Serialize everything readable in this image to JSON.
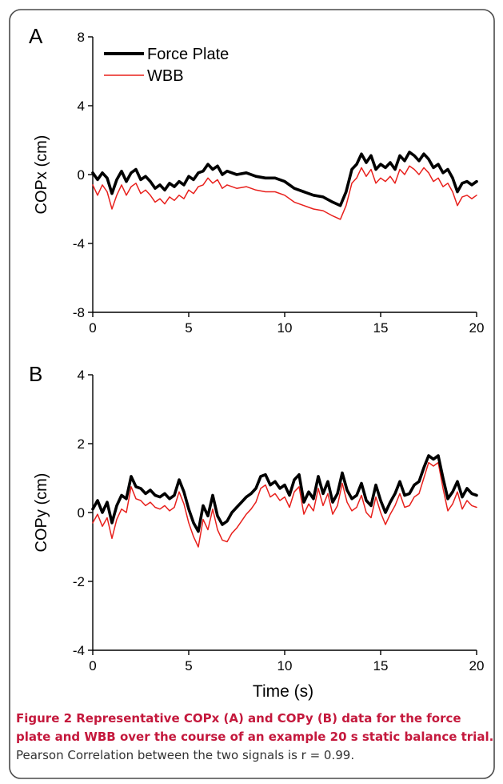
{
  "chart_data": [
    {
      "type": "line",
      "panel_label": "A",
      "ylabel": "COPx  (cm)",
      "xlabel": "",
      "xlim": [
        0,
        20
      ],
      "ylim": [
        -8,
        8
      ],
      "xticks": [
        0,
        5,
        10,
        15,
        20
      ],
      "yticks": [
        8,
        4,
        0,
        -4,
        -8
      ],
      "legend": "top-left",
      "grid": false,
      "series": [
        {
          "name": "Force Plate",
          "color": "#000000",
          "x": [
            0,
            0.25,
            0.5,
            0.75,
            1,
            1.25,
            1.5,
            1.75,
            2,
            2.25,
            2.5,
            2.75,
            3,
            3.25,
            3.5,
            3.75,
            4,
            4.25,
            4.5,
            4.75,
            5,
            5.25,
            5.5,
            5.75,
            6,
            6.25,
            6.5,
            6.75,
            7,
            7.5,
            8,
            8.5,
            9,
            9.5,
            10,
            10.5,
            11,
            11.5,
            12,
            12.5,
            12.9,
            13.2,
            13.5,
            13.75,
            14,
            14.25,
            14.5,
            14.75,
            15,
            15.25,
            15.5,
            15.75,
            16,
            16.25,
            16.5,
            16.75,
            17,
            17.25,
            17.5,
            17.75,
            18,
            18.25,
            18.5,
            18.75,
            19,
            19.25,
            19.5,
            19.75,
            20
          ],
          "y": [
            0.1,
            -0.3,
            0.1,
            -0.2,
            -1.1,
            -0.3,
            0.2,
            -0.4,
            0.1,
            0.3,
            -0.3,
            -0.1,
            -0.4,
            -0.8,
            -0.6,
            -0.9,
            -0.5,
            -0.7,
            -0.4,
            -0.6,
            -0.1,
            -0.3,
            0.1,
            0.2,
            0.6,
            0.3,
            0.5,
            0.0,
            0.2,
            0.0,
            0.1,
            -0.1,
            -0.2,
            -0.2,
            -0.4,
            -0.8,
            -1.0,
            -1.2,
            -1.3,
            -1.6,
            -1.8,
            -1.0,
            0.3,
            0.6,
            1.2,
            0.7,
            1.1,
            0.3,
            0.6,
            0.4,
            0.7,
            0.3,
            1.1,
            0.8,
            1.3,
            1.1,
            0.8,
            1.2,
            0.9,
            0.4,
            0.6,
            0.1,
            0.3,
            -0.2,
            -1.0,
            -0.5,
            -0.4,
            -0.6,
            -0.4
          ]
        },
        {
          "name": "WBB",
          "color": "#e8201c",
          "x": [
            0,
            0.25,
            0.5,
            0.75,
            1,
            1.25,
            1.5,
            1.75,
            2,
            2.25,
            2.5,
            2.75,
            3,
            3.25,
            3.5,
            3.75,
            4,
            4.25,
            4.5,
            4.75,
            5,
            5.25,
            5.5,
            5.75,
            6,
            6.25,
            6.5,
            6.75,
            7,
            7.5,
            8,
            8.5,
            9,
            9.5,
            10,
            10.5,
            11,
            11.5,
            12,
            12.5,
            12.9,
            13.2,
            13.5,
            13.75,
            14,
            14.25,
            14.5,
            14.75,
            15,
            15.25,
            15.5,
            15.75,
            16,
            16.25,
            16.5,
            16.75,
            17,
            17.25,
            17.5,
            17.75,
            18,
            18.25,
            18.5,
            18.75,
            19,
            19.25,
            19.5,
            19.75,
            20
          ],
          "y": [
            -0.6,
            -1.2,
            -0.6,
            -1.0,
            -2.0,
            -1.2,
            -0.6,
            -1.2,
            -0.7,
            -0.5,
            -1.1,
            -0.9,
            -1.2,
            -1.6,
            -1.4,
            -1.7,
            -1.3,
            -1.5,
            -1.2,
            -1.4,
            -0.9,
            -1.1,
            -0.7,
            -0.6,
            -0.2,
            -0.5,
            -0.3,
            -0.8,
            -0.6,
            -0.8,
            -0.7,
            -0.9,
            -1.0,
            -1.0,
            -1.2,
            -1.6,
            -1.8,
            -2.0,
            -2.1,
            -2.4,
            -2.6,
            -1.8,
            -0.5,
            -0.2,
            0.4,
            -0.1,
            0.3,
            -0.5,
            -0.2,
            -0.4,
            -0.1,
            -0.5,
            0.3,
            0.0,
            0.5,
            0.3,
            0.0,
            0.4,
            0.1,
            -0.4,
            -0.2,
            -0.7,
            -0.5,
            -1.0,
            -1.8,
            -1.3,
            -1.2,
            -1.4,
            -1.2
          ]
        }
      ]
    },
    {
      "type": "line",
      "panel_label": "B",
      "ylabel": "COPy  (cm)",
      "xlabel": "Time (s)",
      "xlim": [
        0,
        20
      ],
      "ylim": [
        -4,
        4
      ],
      "xticks": [
        0,
        5,
        10,
        15,
        20
      ],
      "yticks": [
        4,
        2,
        0,
        -2,
        -4
      ],
      "grid": false,
      "series": [
        {
          "name": "Force Plate",
          "color": "#000000",
          "x": [
            0,
            0.25,
            0.5,
            0.75,
            1,
            1.25,
            1.5,
            1.75,
            2,
            2.25,
            2.5,
            2.75,
            3,
            3.25,
            3.5,
            3.75,
            4,
            4.25,
            4.5,
            4.75,
            5,
            5.25,
            5.5,
            5.75,
            6,
            6.25,
            6.5,
            6.75,
            7,
            7.25,
            7.5,
            7.75,
            8,
            8.25,
            8.5,
            8.75,
            9,
            9.25,
            9.5,
            9.75,
            10,
            10.25,
            10.5,
            10.75,
            11,
            11.25,
            11.5,
            11.75,
            12,
            12.25,
            12.5,
            12.75,
            13,
            13.25,
            13.5,
            13.75,
            14,
            14.25,
            14.5,
            14.75,
            15,
            15.25,
            15.5,
            15.75,
            16,
            16.25,
            16.5,
            16.75,
            17,
            17.25,
            17.5,
            17.75,
            18,
            18.25,
            18.5,
            18.75,
            19,
            19.25,
            19.5,
            19.75,
            20
          ],
          "y": [
            0.1,
            0.35,
            0.0,
            0.3,
            -0.3,
            0.2,
            0.5,
            0.4,
            1.05,
            0.75,
            0.7,
            0.55,
            0.65,
            0.5,
            0.45,
            0.55,
            0.4,
            0.5,
            0.95,
            0.6,
            0.1,
            -0.3,
            -0.55,
            0.2,
            -0.1,
            0.5,
            -0.1,
            -0.35,
            -0.25,
            0.0,
            0.15,
            0.3,
            0.45,
            0.55,
            0.7,
            1.05,
            1.1,
            0.8,
            0.9,
            0.7,
            0.8,
            0.5,
            0.95,
            1.1,
            0.3,
            0.6,
            0.4,
            1.05,
            0.55,
            0.9,
            0.3,
            0.55,
            1.15,
            0.65,
            0.4,
            0.5,
            0.85,
            0.35,
            0.2,
            0.8,
            0.35,
            0.0,
            0.3,
            0.55,
            0.9,
            0.5,
            0.55,
            0.8,
            0.9,
            1.3,
            1.65,
            1.55,
            1.65,
            1.0,
            0.4,
            0.6,
            0.9,
            0.45,
            0.7,
            0.55,
            0.5
          ]
        },
        {
          "name": "WBB",
          "color": "#e8201c",
          "x": [
            0,
            0.25,
            0.5,
            0.75,
            1,
            1.25,
            1.5,
            1.75,
            2,
            2.25,
            2.5,
            2.75,
            3,
            3.25,
            3.5,
            3.75,
            4,
            4.25,
            4.5,
            4.75,
            5,
            5.25,
            5.5,
            5.75,
            6,
            6.25,
            6.5,
            6.75,
            7,
            7.25,
            7.5,
            7.75,
            8,
            8.25,
            8.5,
            8.75,
            9,
            9.25,
            9.5,
            9.75,
            10,
            10.25,
            10.5,
            10.75,
            11,
            11.25,
            11.5,
            11.75,
            12,
            12.25,
            12.5,
            12.75,
            13,
            13.25,
            13.5,
            13.75,
            14,
            14.25,
            14.5,
            14.75,
            15,
            15.25,
            15.5,
            15.75,
            16,
            16.25,
            16.5,
            16.75,
            17,
            17.25,
            17.5,
            17.75,
            18,
            18.25,
            18.5,
            18.75,
            19,
            19.25,
            19.5,
            19.75,
            20
          ],
          "y": [
            -0.3,
            -0.05,
            -0.4,
            -0.15,
            -0.75,
            -0.2,
            0.1,
            0.0,
            0.75,
            0.4,
            0.35,
            0.2,
            0.3,
            0.15,
            0.1,
            0.2,
            0.05,
            0.15,
            0.6,
            0.25,
            -0.3,
            -0.7,
            -1.0,
            -0.2,
            -0.5,
            0.1,
            -0.5,
            -0.8,
            -0.85,
            -0.6,
            -0.45,
            -0.25,
            -0.05,
            0.1,
            0.3,
            0.7,
            0.8,
            0.45,
            0.55,
            0.35,
            0.45,
            0.15,
            0.6,
            0.75,
            -0.05,
            0.25,
            0.05,
            0.7,
            0.2,
            0.55,
            -0.05,
            0.2,
            0.85,
            0.3,
            0.05,
            0.15,
            0.5,
            0.0,
            -0.15,
            0.45,
            0.0,
            -0.35,
            -0.05,
            0.2,
            0.55,
            0.15,
            0.2,
            0.45,
            0.55,
            1.0,
            1.45,
            1.35,
            1.45,
            0.7,
            0.05,
            0.25,
            0.6,
            0.1,
            0.35,
            0.2,
            0.15
          ]
        }
      ]
    }
  ],
  "caption": {
    "bold": "Figure 2 Representative COPx (A) and COPy (B) data for the force plate and WBB over the course of an example 20 s static balance trial.",
    "rest": " Pearson Correlation between the two signals is r = 0.99."
  }
}
